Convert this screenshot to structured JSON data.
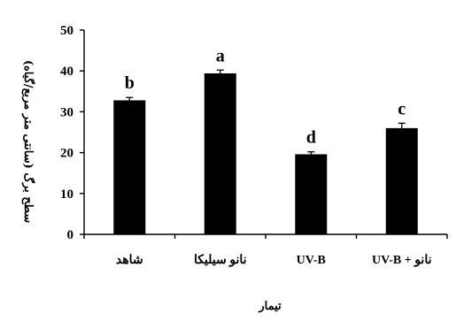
{
  "chart_data": {
    "type": "bar",
    "title": "",
    "xlabel": "تیمار",
    "ylabel": "سطح برگ (سانتی متر مربع/گیاه)",
    "categories": [
      "شاهد",
      "نانو سیلیکا",
      "UV-B",
      "UV-B + نانو"
    ],
    "values": [
      32.8,
      39.4,
      19.6,
      26.0
    ],
    "errors": [
      0.7,
      0.8,
      0.6,
      1.2
    ],
    "letters": [
      "b",
      "a",
      "d",
      "c"
    ],
    "ylim": [
      0,
      50
    ],
    "yticks": [
      "0",
      "10",
      "20",
      "30",
      "40",
      "50"
    ],
    "grid": false,
    "colors": {
      "bar": "#000000",
      "axis": "#000000",
      "background": "#ffffff"
    }
  }
}
